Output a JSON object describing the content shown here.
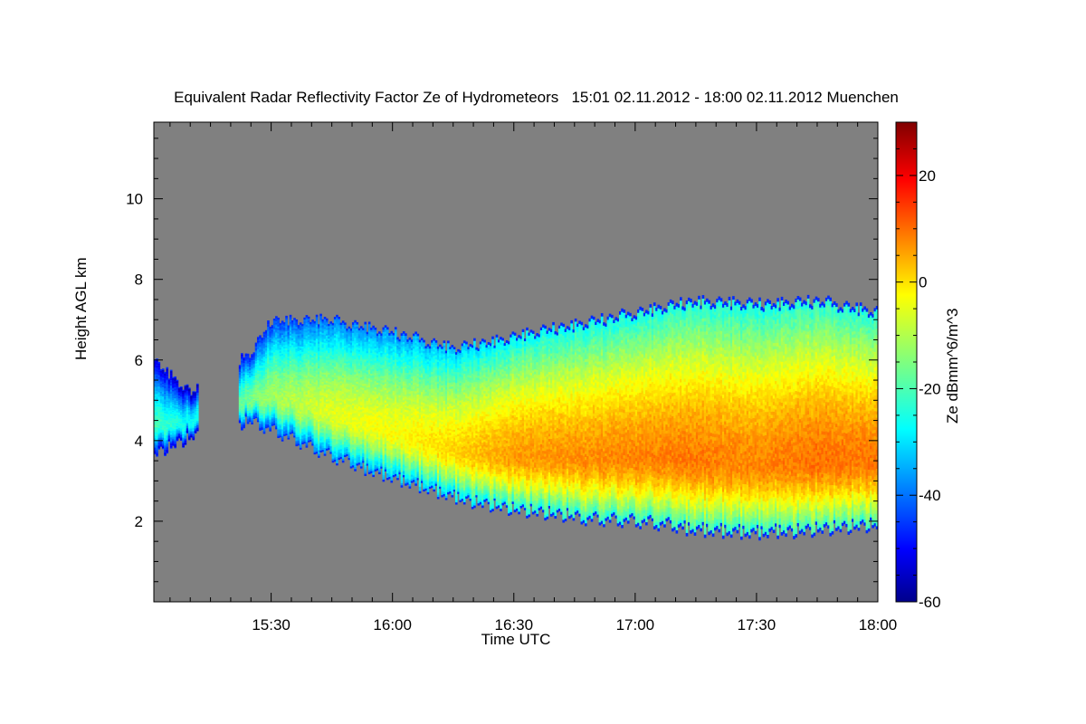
{
  "chart_data": {
    "type": "heatmap",
    "title": "Equivalent Radar Reflectivity Factor Ze of Hydrometeors   15:01 02.11.2012 - 18:00 02.11.2012 Muenchen",
    "xlabel": "Time UTC",
    "ylabel": "Height AGL km",
    "xlim": [
      "15:01",
      "18:00"
    ],
    "ylim": [
      0,
      11.9
    ],
    "x_ticks": [
      "15:30",
      "16:00",
      "16:30",
      "17:00",
      "17:30",
      "18:00"
    ],
    "y_ticks": [
      2,
      4,
      6,
      8,
      10
    ],
    "background_color": "#808080",
    "colorbar": {
      "label": "Ze dBmm^6/m^3",
      "range": [
        -60,
        30
      ],
      "ticks": [
        20,
        0,
        -20,
        -40,
        -60
      ],
      "colormap": "jet"
    },
    "echo_layer": [
      {
        "time": "15:01",
        "base_km": 3.6,
        "top_km": 6.0,
        "core_dbz": -20
      },
      {
        "time": "15:10",
        "base_km": 4.0,
        "top_km": 5.2,
        "core_dbz": -25
      },
      {
        "time": "15:25",
        "base_km": 4.4,
        "top_km": 6.2,
        "core_dbz": -15
      },
      {
        "time": "15:30",
        "base_km": 4.2,
        "top_km": 7.0,
        "core_dbz": -12
      },
      {
        "time": "15:45",
        "base_km": 3.5,
        "top_km": 7.0,
        "core_dbz": -6
      },
      {
        "time": "16:00",
        "base_km": 3.0,
        "top_km": 6.7,
        "core_dbz": -4
      },
      {
        "time": "16:15",
        "base_km": 2.5,
        "top_km": 6.3,
        "core_dbz": 0
      },
      {
        "time": "16:30",
        "base_km": 2.2,
        "top_km": 6.6,
        "core_dbz": 5
      },
      {
        "time": "16:45",
        "base_km": 2.0,
        "top_km": 6.9,
        "core_dbz": 6
      },
      {
        "time": "17:00",
        "base_km": 1.9,
        "top_km": 7.2,
        "core_dbz": 7
      },
      {
        "time": "17:15",
        "base_km": 1.7,
        "top_km": 7.5,
        "core_dbz": 8
      },
      {
        "time": "17:30",
        "base_km": 1.6,
        "top_km": 7.4,
        "core_dbz": 7
      },
      {
        "time": "17:45",
        "base_km": 1.7,
        "top_km": 7.5,
        "core_dbz": 9
      },
      {
        "time": "18:00",
        "base_km": 1.8,
        "top_km": 7.2,
        "core_dbz": 8
      }
    ]
  }
}
